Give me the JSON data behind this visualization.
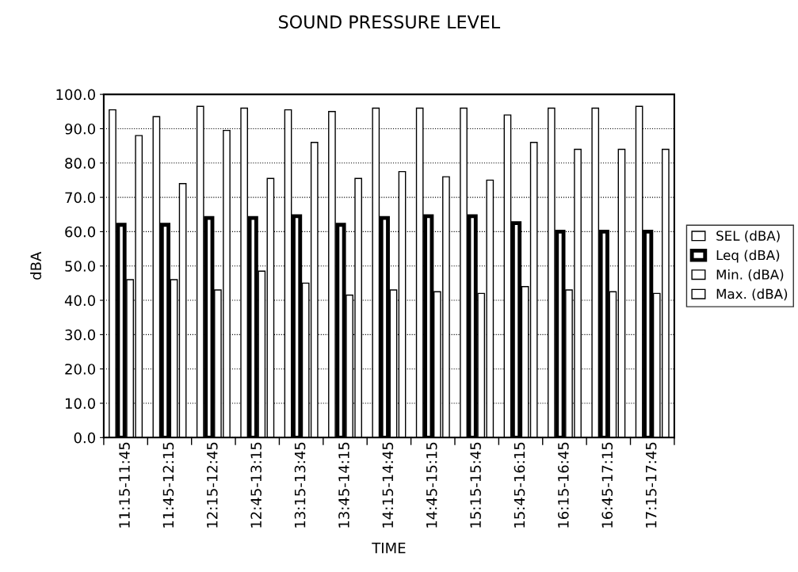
{
  "chart_data": {
    "type": "bar",
    "title": "SOUND PRESSURE LEVEL",
    "xlabel": "TIME",
    "ylabel": "dBA",
    "categories": [
      "11:15-11:45",
      "11:45-12:15",
      "12:15-12:45",
      "12:45-13:15",
      "13:15-13:45",
      "13:45-14:15",
      "14:15-14:45",
      "14:45-15:15",
      "15:15-15:45",
      "15:45-16:15",
      "16:15-16:45",
      "16:45-17:15",
      "17:15-17:45"
    ],
    "series": [
      {
        "name": "SEL (dBA)",
        "color": "#ffffff",
        "values": [
          95.5,
          93.5,
          96.5,
          96,
          95.5,
          95,
          96,
          96,
          96,
          94,
          96,
          96,
          96.5
        ]
      },
      {
        "name": "Leq (dBA)",
        "color": "#ffffff",
        "values": [
          62,
          62,
          64,
          64,
          64.5,
          62,
          64,
          64.5,
          64.5,
          62.5,
          60,
          60,
          60
        ]
      },
      {
        "name": "Min. (dBA)",
        "color": "#ffffff",
        "values": [
          46,
          46,
          43,
          48.5,
          45,
          41.5,
          43,
          42.5,
          42,
          44,
          43,
          42.5,
          42
        ]
      },
      {
        "name": "Max. (dBA)",
        "color": "#ffffff",
        "values": [
          88,
          74,
          89.5,
          75.5,
          86,
          75.5,
          77.5,
          76,
          75,
          86,
          84,
          84,
          84
        ]
      }
    ],
    "ylim": [
      0,
      100
    ],
    "yticks": [
      {
        "value": 0,
        "label": "0.0"
      },
      {
        "value": 10,
        "label": "10.0"
      },
      {
        "value": 20,
        "label": "20.0"
      },
      {
        "value": 30,
        "label": "30.0"
      },
      {
        "value": 40,
        "label": "40.0"
      },
      {
        "value": 50,
        "label": "50.0"
      },
      {
        "value": 60,
        "label": "60.0"
      },
      {
        "value": 70,
        "label": "70.0"
      },
      {
        "value": 80,
        "label": "80.0"
      },
      {
        "value": 90,
        "label": "90.0"
      },
      {
        "value": 100,
        "label": "100.0"
      }
    ],
    "grid": "y",
    "legend": "right"
  }
}
